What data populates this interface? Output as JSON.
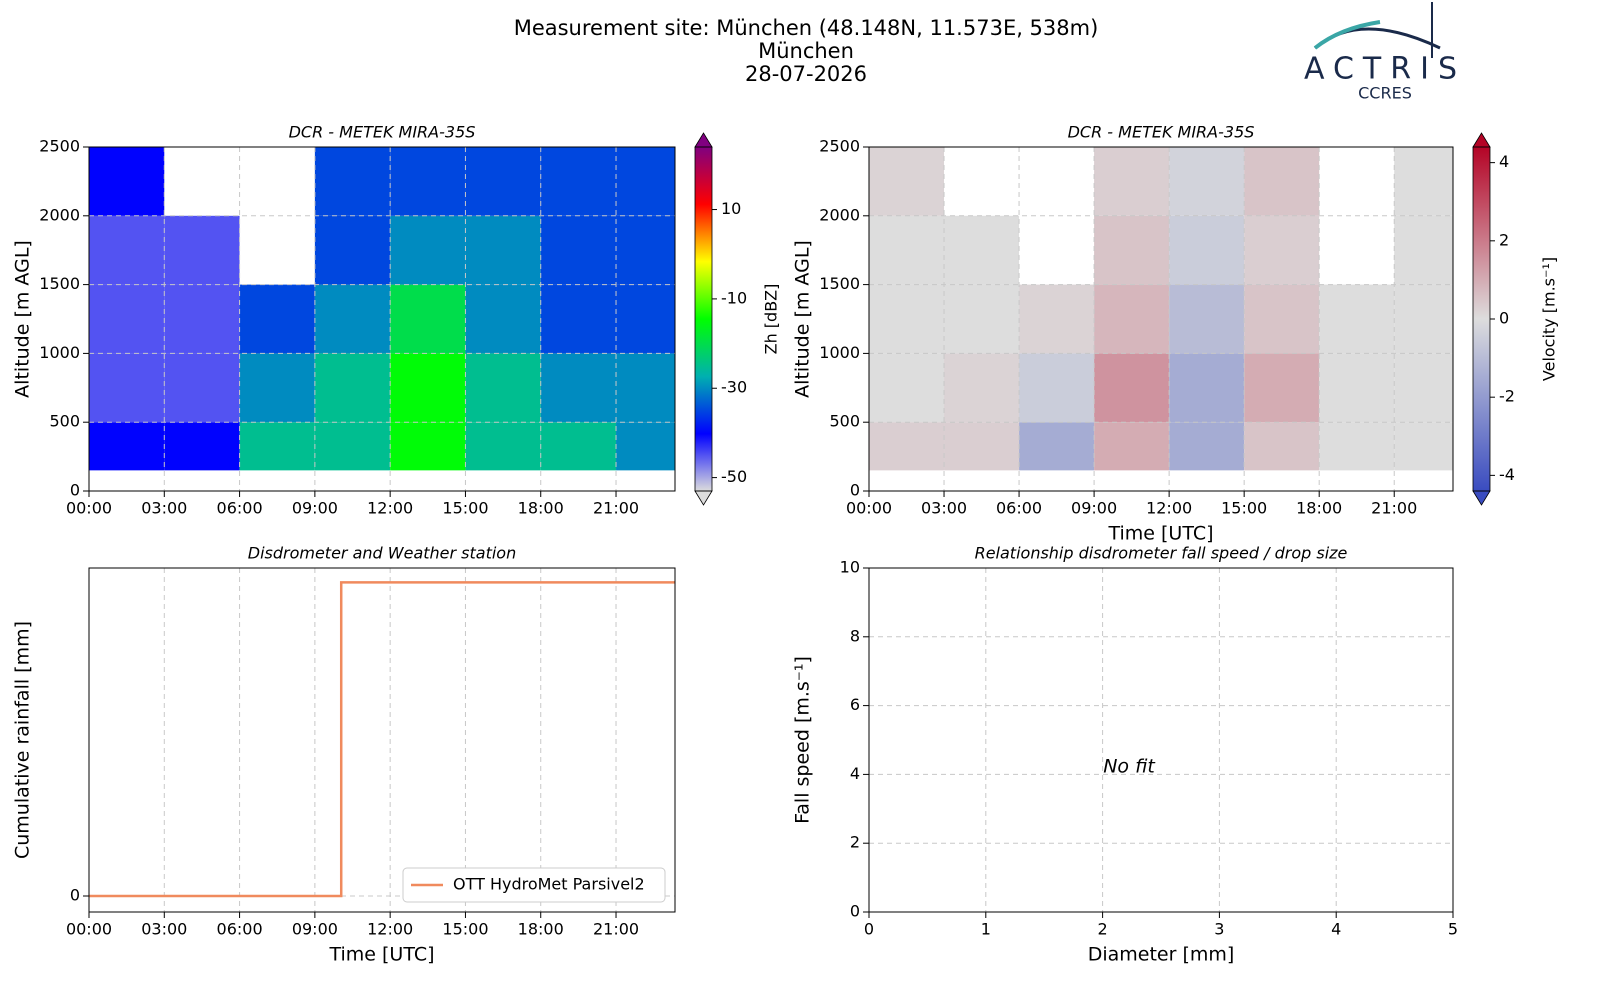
{
  "header": {
    "lines": [
      "Measurement site: München (48.148N, 11.573E, 538m)",
      "München",
      "28-07-2026"
    ]
  },
  "logo": {
    "name": "ACTRIS",
    "sub": "CCRES"
  },
  "chart_data": [
    {
      "type": "heatmap",
      "title": "DCR - METEK MIRA-35S",
      "ylabel": "Altitude [m AGL]",
      "xlim": [
        0,
        23.35
      ],
      "xticks": [
        {
          "value": 0,
          "label": "00:00"
        },
        {
          "value": 3,
          "label": "03:00"
        },
        {
          "value": 6,
          "label": "06:00"
        },
        {
          "value": 9,
          "label": "09:00"
        },
        {
          "value": 12,
          "label": "12:00"
        },
        {
          "value": 15,
          "label": "15:00"
        },
        {
          "value": 18,
          "label": "18:00"
        },
        {
          "value": 21,
          "label": "21:00"
        }
      ],
      "ylim": [
        0,
        2500
      ],
      "yticks": [
        0,
        500,
        1000,
        1500,
        2000,
        2500
      ],
      "grid": true,
      "x_bins": [
        0,
        3,
        6,
        9,
        12,
        15,
        18,
        21,
        23.35
      ],
      "y_bins": [
        150,
        500,
        1000,
        1500,
        2000,
        2500
      ],
      "values": [
        [
          -40,
          -40,
          -25,
          -25,
          -15,
          -25,
          -25,
          -30
        ],
        [
          -45,
          -45,
          -30,
          -25,
          -15,
          -25,
          -30,
          -30
        ],
        [
          -45,
          -45,
          -35,
          -30,
          -20,
          -30,
          -35,
          -35
        ],
        [
          -45,
          -45,
          null,
          -35,
          -30,
          -30,
          -35,
          -35
        ],
        [
          -40,
          null,
          null,
          -35,
          -35,
          -35,
          -35,
          -35
        ]
      ],
      "colormap": [
        "#dcdcdc",
        "#0000ff",
        "#00b0b0",
        "#00ff00",
        "#ffff00",
        "#ff0000",
        "#800080"
      ],
      "colorbar": {
        "label": "Zh [dBZ]",
        "lim": [
          -53,
          24
        ],
        "ticks": [
          -50,
          -30,
          -10,
          10
        ]
      }
    },
    {
      "type": "heatmap",
      "title": "DCR - METEK MIRA-35S",
      "xlabel": "Time [UTC]",
      "ylabel": "Altitude [m AGL]",
      "xlim": [
        0,
        23.35
      ],
      "xticks": [
        {
          "value": 0,
          "label": "00:00"
        },
        {
          "value": 3,
          "label": "03:00"
        },
        {
          "value": 6,
          "label": "06:00"
        },
        {
          "value": 9,
          "label": "09:00"
        },
        {
          "value": 12,
          "label": "12:00"
        },
        {
          "value": 15,
          "label": "15:00"
        },
        {
          "value": 18,
          "label": "18:00"
        },
        {
          "value": 21,
          "label": "21:00"
        }
      ],
      "ylim": [
        0,
        2500
      ],
      "yticks": [
        0,
        500,
        1000,
        1500,
        2000,
        2500
      ],
      "grid": true,
      "x_bins": [
        0,
        3,
        6,
        9,
        12,
        15,
        18,
        21,
        23.35
      ],
      "y_bins": [
        150,
        500,
        1000,
        1500,
        2000,
        2500
      ],
      "values": [
        [
          0.3,
          0.3,
          -1.5,
          1.0,
          -1.5,
          0.5,
          0,
          0
        ],
        [
          0,
          0.2,
          -0.5,
          1.5,
          -1.5,
          1.0,
          0,
          0
        ],
        [
          0,
          0,
          0.2,
          0.8,
          -1.0,
          0.5,
          0,
          0
        ],
        [
          0,
          0,
          null,
          0.5,
          -0.5,
          0.3,
          null,
          0
        ],
        [
          0.2,
          null,
          null,
          0.3,
          -0.3,
          0.5,
          null,
          0
        ]
      ],
      "colormap": [
        "#3a4cc0",
        "#dddddd",
        "#b40426"
      ],
      "colorbar": {
        "label": "Velocity [m.s⁻¹]",
        "lim": [
          -4.4,
          4.4
        ],
        "ticks": [
          -4,
          -2,
          0,
          2,
          4
        ]
      }
    },
    {
      "type": "line",
      "title": "Disdrometer and Weather station",
      "xlabel": "Time [UTC]",
      "ylabel": "Cumulative rainfall [mm]",
      "xlim": [
        0,
        23.35
      ],
      "xticks": [
        {
          "value": 0,
          "label": "00:00"
        },
        {
          "value": 3,
          "label": "03:00"
        },
        {
          "value": 6,
          "label": "06:00"
        },
        {
          "value": 9,
          "label": "09:00"
        },
        {
          "value": 12,
          "label": "12:00"
        },
        {
          "value": 15,
          "label": "15:00"
        },
        {
          "value": 18,
          "label": "18:00"
        },
        {
          "value": 21,
          "label": "21:00"
        }
      ],
      "ylim": [
        -0.05,
        1.025
      ],
      "yticks": [
        0
      ],
      "grid": true,
      "legend": "lower right",
      "x": [
        0,
        10.05,
        10.05,
        23.35
      ],
      "series": [
        {
          "name": "OTT HydroMet Parsivel2",
          "color": "#f08a5d",
          "values": [
            0,
            0,
            0.98,
            0.98
          ]
        }
      ]
    },
    {
      "type": "scatter",
      "title": "Relationship disdrometer fall speed / drop size",
      "xlabel": "Diameter [mm]",
      "ylabel": "Fall speed [m.s⁻¹]",
      "xlim": [
        0,
        5
      ],
      "xticks": [
        0,
        1,
        2,
        3,
        4,
        5
      ],
      "ylim": [
        0,
        10
      ],
      "yticks": [
        0,
        2,
        4,
        6,
        8,
        10
      ],
      "grid": true,
      "annotation": "No fit"
    }
  ]
}
